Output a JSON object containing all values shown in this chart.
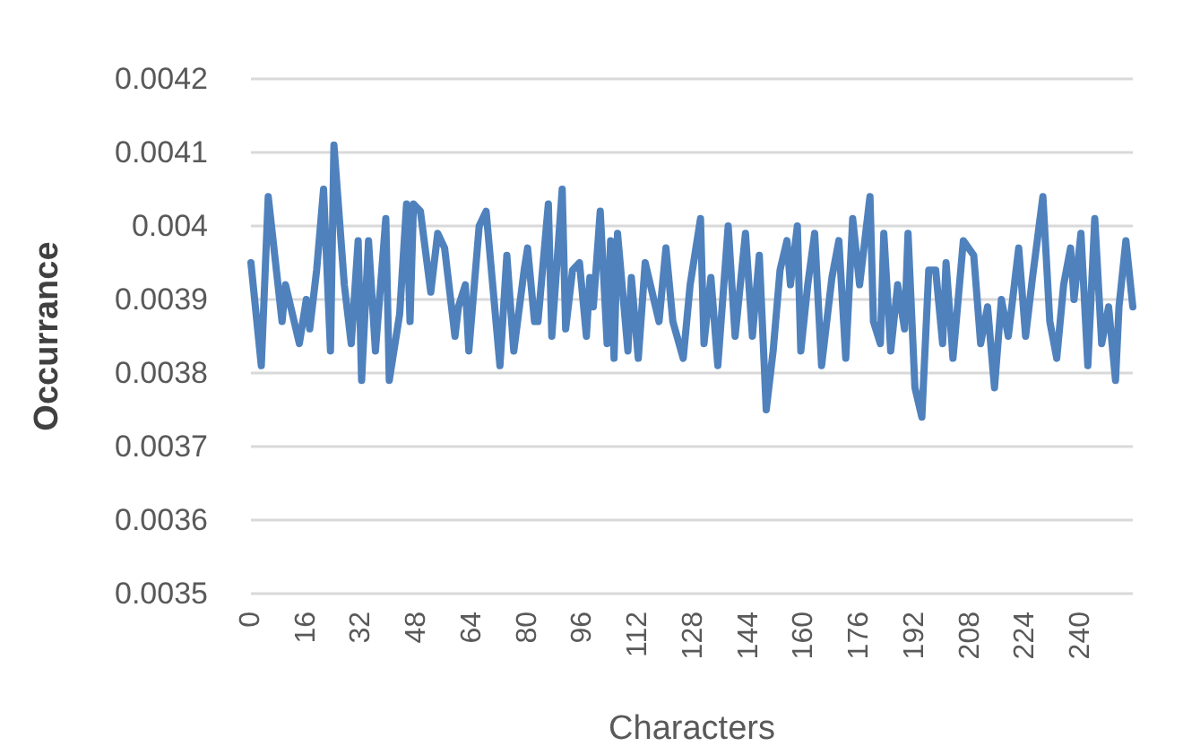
{
  "chart_data": {
    "type": "line",
    "xlabel": "Characters",
    "ylabel": "Occurrance",
    "xlim": [
      0,
      255
    ],
    "xticks": [
      0,
      16,
      32,
      48,
      64,
      80,
      96,
      112,
      128,
      144,
      160,
      176,
      192,
      208,
      224,
      240
    ],
    "ylim": [
      0.0035,
      0.0042
    ],
    "yticks": [
      0.0035,
      0.0036,
      0.0037,
      0.0038,
      0.0039,
      0.004,
      0.0041,
      0.0042
    ],
    "grid": "y",
    "marker": "none",
    "line_style": "solid",
    "series": [
      {
        "color": "#4f81bd",
        "x": [
          0,
          3,
          5,
          7,
          9,
          10,
          14,
          16,
          17,
          19,
          21,
          23,
          24,
          27,
          29,
          31,
          32,
          34,
          36,
          39,
          40,
          43,
          45,
          46,
          47,
          49,
          52,
          54,
          56,
          59,
          60,
          62,
          63,
          66,
          68,
          72,
          74,
          76,
          79,
          80,
          82,
          83,
          86,
          87,
          90,
          91,
          93,
          95,
          97,
          98,
          99,
          101,
          103,
          104,
          105,
          106,
          109,
          110,
          112,
          114,
          118,
          120,
          122,
          125,
          127,
          130,
          131,
          133,
          135,
          138,
          140,
          143,
          145,
          147,
          149,
          151,
          153,
          155,
          156,
          158,
          159,
          161,
          163,
          165,
          168,
          170,
          172,
          174,
          176,
          179,
          180,
          182,
          183,
          185,
          187,
          189,
          190,
          192,
          194,
          196,
          198,
          200,
          201,
          203,
          206,
          209,
          211,
          213,
          215,
          217,
          219,
          222,
          224,
          226,
          229,
          231,
          233,
          235,
          237,
          238,
          240,
          242,
          244,
          246,
          248,
          250,
          251,
          253,
          255
        ],
        "values": [
          0.00395,
          0.00381,
          0.00404,
          0.003955,
          0.00387,
          0.00392,
          0.00384,
          0.0039,
          0.00386,
          0.00394,
          0.00405,
          0.00383,
          0.00411,
          0.00392,
          0.00384,
          0.00398,
          0.00379,
          0.00398,
          0.00383,
          0.00401,
          0.00379,
          0.00388,
          0.00403,
          0.00387,
          0.00403,
          0.00402,
          0.00391,
          0.00399,
          0.00397,
          0.00385,
          0.00389,
          0.00392,
          0.00383,
          0.004,
          0.00402,
          0.00381,
          0.00396,
          0.00383,
          0.00394,
          0.00397,
          0.00387,
          0.00387,
          0.00403,
          0.00385,
          0.00405,
          0.00386,
          0.00394,
          0.00395,
          0.00385,
          0.00393,
          0.00389,
          0.00402,
          0.00384,
          0.00398,
          0.00382,
          0.00399,
          0.00383,
          0.00393,
          0.00382,
          0.00395,
          0.00387,
          0.00397,
          0.00387,
          0.00382,
          0.00392,
          0.00401,
          0.00384,
          0.00393,
          0.00381,
          0.004,
          0.00385,
          0.00399,
          0.00385,
          0.00396,
          0.00375,
          0.00383,
          0.00394,
          0.00398,
          0.00392,
          0.004,
          0.00383,
          0.00392,
          0.00399,
          0.00381,
          0.00393,
          0.00398,
          0.00382,
          0.00401,
          0.00392,
          0.00404,
          0.00387,
          0.00384,
          0.00399,
          0.00383,
          0.00392,
          0.00386,
          0.00399,
          0.00378,
          0.00374,
          0.00394,
          0.00394,
          0.00384,
          0.00395,
          0.00382,
          0.00398,
          0.00396,
          0.00384,
          0.00389,
          0.00378,
          0.0039,
          0.00385,
          0.00397,
          0.00385,
          0.00393,
          0.00404,
          0.00387,
          0.00382,
          0.00392,
          0.00397,
          0.0039,
          0.00399,
          0.00381,
          0.00401,
          0.00384,
          0.00389,
          0.00379,
          0.00389,
          0.00398,
          0.00389
        ]
      }
    ]
  }
}
